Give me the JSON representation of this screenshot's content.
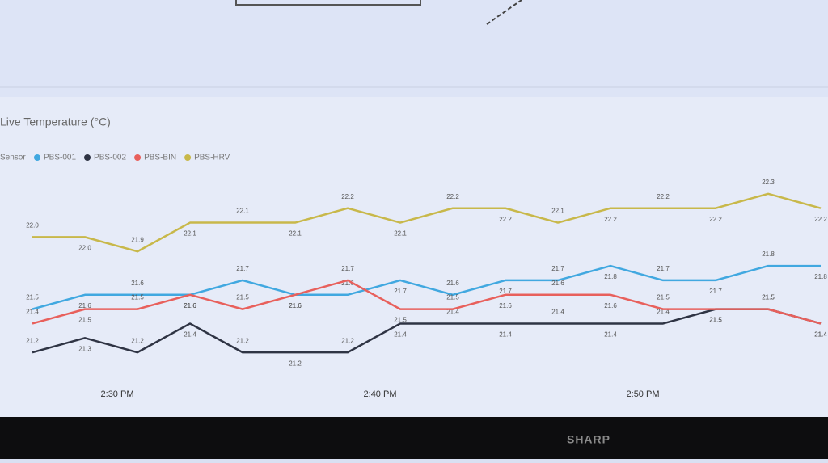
{
  "brand": "SHARP",
  "chart_data": {
    "type": "line",
    "title": "Live Temperature (°C)",
    "legend_title": "Sensor",
    "categories": [
      null,
      null,
      "2:30 PM",
      null,
      null,
      null,
      null,
      "2:40 PM",
      null,
      null,
      null,
      null,
      "2:50 PM",
      null,
      null,
      null
    ],
    "ylim": [
      21.1,
      22.4
    ],
    "series": [
      {
        "name": "PBS-001",
        "color": "#41a8e0",
        "values": [
          21.5,
          21.6,
          21.6,
          21.6,
          21.7,
          21.6,
          21.6,
          21.7,
          21.6,
          21.7,
          21.7,
          21.8,
          21.7,
          21.7,
          21.8,
          21.8
        ]
      },
      {
        "name": "PBS-002",
        "color": "#2f3444",
        "values": [
          21.2,
          21.3,
          21.2,
          21.4,
          21.2,
          21.2,
          21.2,
          21.4,
          21.4,
          21.4,
          21.4,
          21.4,
          21.4,
          21.5,
          21.5,
          21.4
        ]
      },
      {
        "name": "PBS-BIN",
        "color": "#e8605c",
        "values": [
          21.4,
          21.5,
          21.5,
          21.6,
          21.5,
          21.6,
          21.7,
          21.5,
          21.5,
          21.6,
          21.6,
          21.6,
          21.5,
          21.5,
          21.5,
          21.4
        ]
      },
      {
        "name": "PBS-HRV",
        "color": "#c8b84a",
        "values": [
          22.0,
          22.0,
          21.9,
          22.1,
          22.1,
          22.1,
          22.2,
          22.1,
          22.2,
          22.2,
          22.1,
          22.2,
          22.2,
          22.2,
          22.3,
          22.2
        ],
        "value_labels": [
          "22.0",
          "22.0",
          "21.9",
          "22.1",
          "22.1",
          "22.1",
          "22.2",
          "22.1",
          "22.2",
          "22.2",
          "22.1",
          "22.2",
          "22.2",
          "22.2",
          "22.3",
          "22.2"
        ]
      }
    ]
  }
}
